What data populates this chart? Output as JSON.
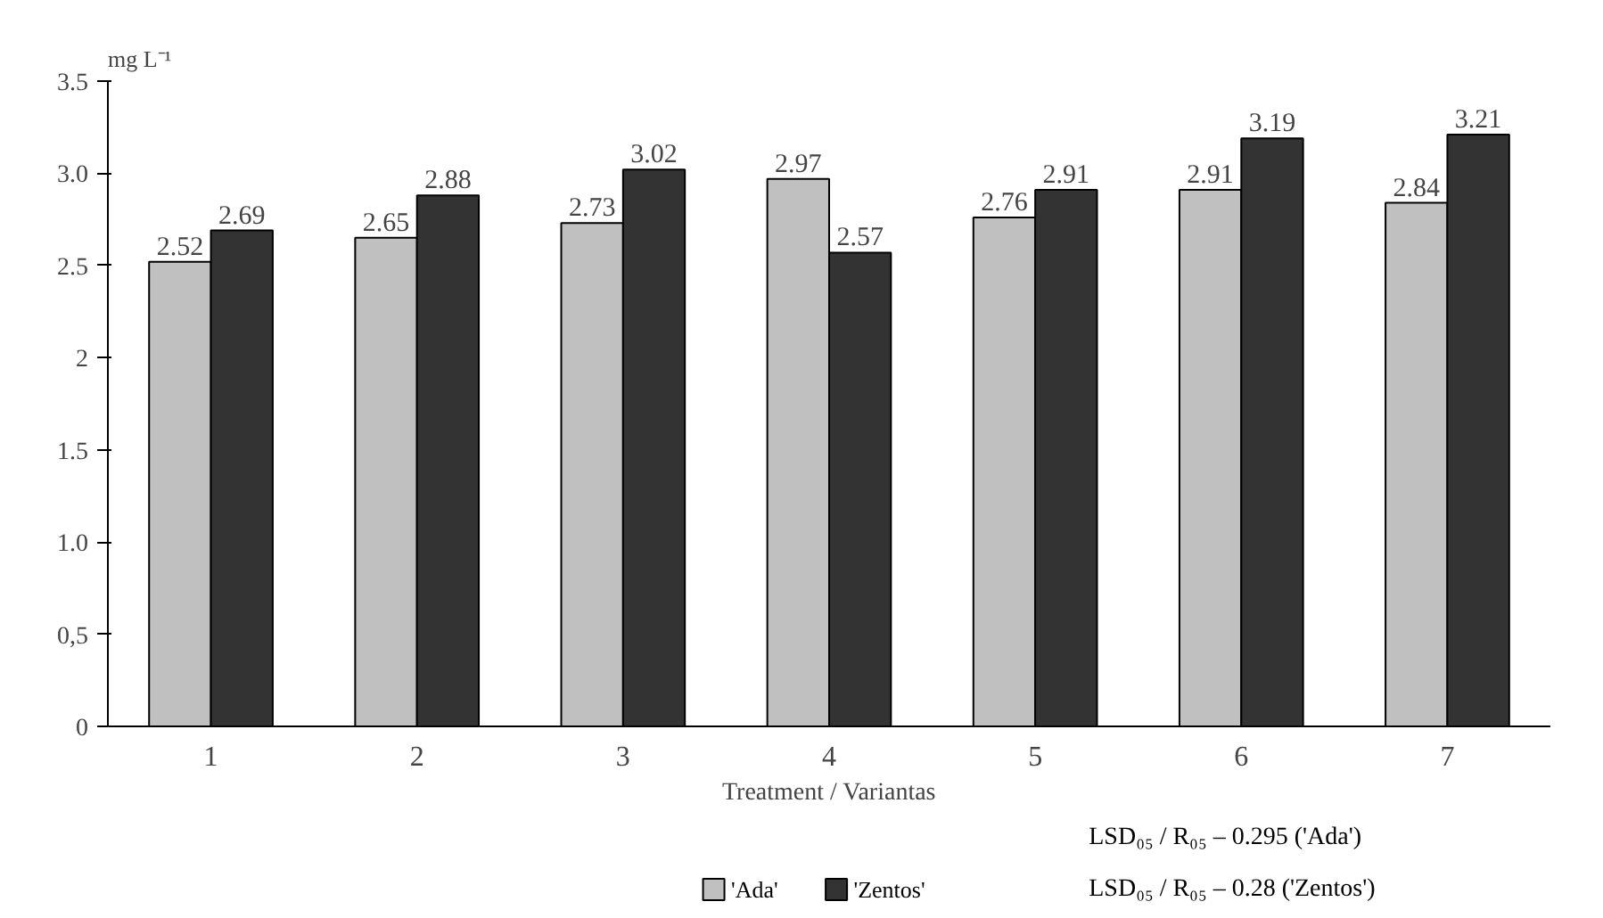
{
  "chart_data": {
    "type": "bar",
    "xlabel": "Treatment / Variantas",
    "ylabel": "mg L⁻¹",
    "categories": [
      "1",
      "2",
      "3",
      "4",
      "5",
      "6",
      "7"
    ],
    "series": [
      {
        "name": "'Ada'",
        "color": "#c0c0c0",
        "values": [
          2.52,
          2.65,
          2.73,
          2.97,
          2.76,
          2.91,
          2.84
        ]
      },
      {
        "name": "'Zentos'",
        "color": "#333333",
        "values": [
          2.69,
          2.88,
          3.02,
          2.57,
          2.91,
          3.19,
          3.21
        ]
      }
    ],
    "ylim": [
      0,
      3.5
    ],
    "yticks": [
      0,
      {
        "value": 0.5,
        "label": "0,5"
      },
      {
        "value": 1.0,
        "label": "1.0"
      },
      1.5,
      2,
      2.5,
      {
        "value": 3.0,
        "label": "3.0"
      },
      3.5
    ],
    "data_labels": true,
    "grid": false,
    "legend": "bottom",
    "annotations": [
      "LSD₀₅ / R₀₅ – 0.295 ('Ada')",
      "LSD₀₅ / R₀₅ – 0.28 ('Zentos')"
    ]
  }
}
